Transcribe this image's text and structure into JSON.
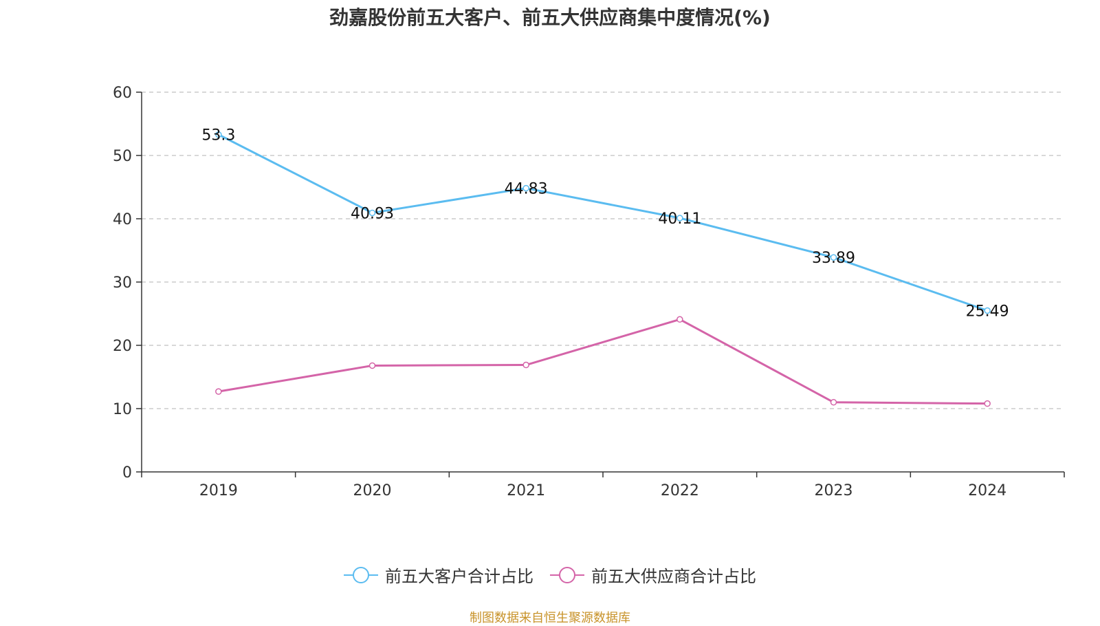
{
  "chart_data": {
    "type": "line",
    "title": "劲嘉股份前五大客户、前五大供应商集中度情况(%)",
    "categories": [
      "2019",
      "2020",
      "2021",
      "2022",
      "2023",
      "2024"
    ],
    "ylim": [
      0,
      60
    ],
    "yticks": [
      0,
      10,
      20,
      30,
      40,
      50,
      60
    ],
    "grid": "dashed horizontal",
    "legend_position": "bottom-center",
    "series": [
      {
        "name": "前五大客户合计占比",
        "color": "#5bbcf0",
        "values": [
          53.3,
          40.93,
          44.83,
          40.11,
          33.89,
          25.49
        ],
        "labels": [
          "53.3",
          "40.93",
          "44.83",
          "40.11",
          "33.89",
          "25.49"
        ],
        "show_labels": true
      },
      {
        "name": "前五大供应商合计占比",
        "color": "#d464a8",
        "values": [
          12.7,
          16.8,
          16.9,
          24.1,
          11.0,
          10.8
        ],
        "show_labels": false
      }
    ]
  },
  "source_text": "制图数据来自恒生聚源数据库"
}
